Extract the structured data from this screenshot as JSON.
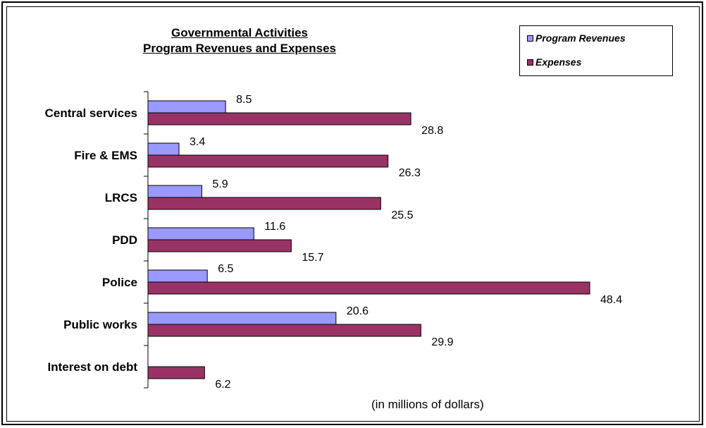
{
  "chart_data": {
    "type": "bar",
    "orientation": "horizontal",
    "title": [
      "Governmental Activities",
      "Program Revenues and Expenses"
    ],
    "xlabel": "(in millions of dollars)",
    "ylabel": "",
    "categories": [
      "Central services",
      "Fire & EMS",
      "LRCS",
      "PDD",
      "Police",
      "Public works",
      "Interest on debt"
    ],
    "series": [
      {
        "name": "Program Revenues",
        "color": "#9999ff",
        "values": [
          8.5,
          3.4,
          5.9,
          11.6,
          6.5,
          20.6,
          null
        ],
        "labels": [
          "8.5",
          "3.4",
          "5.9",
          "11.6",
          "6.5",
          "20.6",
          ""
        ]
      },
      {
        "name": "Expenses",
        "color": "#993366",
        "values": [
          28.8,
          26.3,
          25.5,
          15.7,
          48.4,
          29.9,
          6.2
        ],
        "labels": [
          "28.8",
          "26.3",
          "25.5",
          "15.7",
          "48.4",
          "29.9",
          "6.2"
        ]
      }
    ],
    "xlim": [
      0,
      48.4
    ],
    "grid": false,
    "legend_position": "top-right"
  }
}
